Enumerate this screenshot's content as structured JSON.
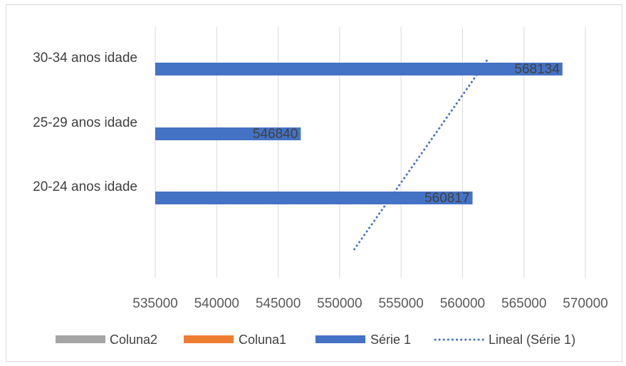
{
  "chart_data": {
    "type": "bar",
    "orientation": "horizontal",
    "categories": [
      "20-24 anos idade",
      "25-29 anos idade",
      "30-34 anos idade"
    ],
    "series": [
      {
        "name": "Coluna2",
        "values": [
          null,
          null,
          null
        ],
        "color": "#a5a5a5"
      },
      {
        "name": "Coluna1",
        "values": [
          null,
          null,
          null
        ],
        "color": "#ed7d31"
      },
      {
        "name": "Série 1",
        "values": [
          560817,
          546840,
          568134
        ],
        "color": "#4472c4"
      }
    ],
    "trendline": {
      "name": "Lineal (Série 1)",
      "type": "linear",
      "series": "Série 1",
      "color": "#4472c4",
      "x_start": 551200,
      "x_end": 562100
    },
    "data_labels": [
      "560817",
      "546840",
      "568134"
    ],
    "xlim": [
      535000,
      570000
    ],
    "x_ticks": [
      "535000",
      "540000",
      "545000",
      "550000",
      "555000",
      "560000",
      "565000",
      "570000"
    ],
    "x_tick_values": [
      535000,
      540000,
      545000,
      550000,
      555000,
      560000,
      565000,
      570000
    ],
    "grid": true,
    "legend_position": "bottom"
  }
}
